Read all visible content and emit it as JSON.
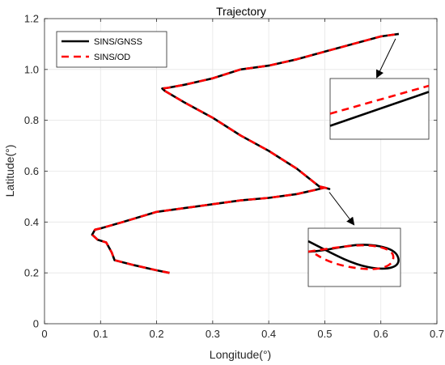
{
  "chart_data": {
    "type": "line",
    "title": "Trajectory",
    "xlabel": "Longitude(°)",
    "ylabel": "Latitude(°)",
    "xlim": [
      0,
      0.7
    ],
    "ylim": [
      0,
      1.2
    ],
    "xticks": [
      0,
      0.1,
      0.2,
      0.3,
      0.4,
      0.5,
      0.6,
      0.7
    ],
    "yticks": [
      0,
      0.2,
      0.4,
      0.6,
      0.8,
      1.0,
      1.2
    ],
    "xtick_labels": [
      "0",
      "0.1",
      "0.2",
      "0.3",
      "0.4",
      "0.5",
      "0.6",
      "0.7"
    ],
    "ytick_labels": [
      "0",
      "0.2",
      "0.4",
      "0.6",
      "0.8",
      "1.0",
      "1.2"
    ],
    "grid": true,
    "legend_position": "top-left",
    "series": [
      {
        "name": "SINS/GNSS",
        "color": "#000000",
        "style": "solid",
        "x": [
          0.223,
          0.2,
          0.16,
          0.125,
          0.12,
          0.115,
          0.11,
          0.095,
          0.085,
          0.09,
          0.1,
          0.14,
          0.2,
          0.25,
          0.3,
          0.35,
          0.4,
          0.45,
          0.48,
          0.5,
          0.508,
          0.5,
          0.49,
          0.45,
          0.4,
          0.35,
          0.3,
          0.25,
          0.215,
          0.21,
          0.22,
          0.25,
          0.3,
          0.35,
          0.4,
          0.45,
          0.5,
          0.55,
          0.6,
          0.632
        ],
        "y": [
          0.2,
          0.21,
          0.23,
          0.25,
          0.28,
          0.3,
          0.32,
          0.33,
          0.35,
          0.37,
          0.375,
          0.4,
          0.44,
          0.455,
          0.47,
          0.485,
          0.495,
          0.51,
          0.525,
          0.535,
          0.53,
          0.535,
          0.54,
          0.61,
          0.68,
          0.74,
          0.81,
          0.87,
          0.915,
          0.925,
          0.928,
          0.94,
          0.965,
          1.0,
          1.015,
          1.04,
          1.07,
          1.1,
          1.13,
          1.14
        ]
      },
      {
        "name": "SINS/OD",
        "color": "#ff0000",
        "style": "dashed",
        "x": [
          0.223,
          0.2,
          0.16,
          0.125,
          0.12,
          0.115,
          0.11,
          0.095,
          0.085,
          0.09,
          0.1,
          0.14,
          0.2,
          0.25,
          0.3,
          0.35,
          0.4,
          0.45,
          0.48,
          0.5,
          0.508,
          0.5,
          0.49,
          0.45,
          0.4,
          0.35,
          0.3,
          0.25,
          0.215,
          0.21,
          0.22,
          0.25,
          0.3,
          0.35,
          0.4,
          0.45,
          0.5,
          0.55,
          0.6,
          0.632
        ],
        "y": [
          0.2,
          0.21,
          0.23,
          0.25,
          0.28,
          0.3,
          0.32,
          0.33,
          0.35,
          0.37,
          0.375,
          0.4,
          0.44,
          0.455,
          0.47,
          0.485,
          0.495,
          0.51,
          0.525,
          0.535,
          0.53,
          0.535,
          0.54,
          0.61,
          0.68,
          0.74,
          0.81,
          0.87,
          0.915,
          0.925,
          0.928,
          0.94,
          0.965,
          1.0,
          1.015,
          1.04,
          1.07,
          1.1,
          1.13,
          1.14
        ]
      }
    ],
    "insets": [
      {
        "target": [
          0.632,
          1.14
        ],
        "black_line": [
          [
            0.0,
            0.22
          ],
          [
            1.0,
            0.78
          ]
        ],
        "red_line": [
          [
            0.0,
            0.42
          ],
          [
            1.0,
            0.88
          ]
        ]
      },
      {
        "target": [
          0.508,
          0.53
        ]
      }
    ]
  }
}
